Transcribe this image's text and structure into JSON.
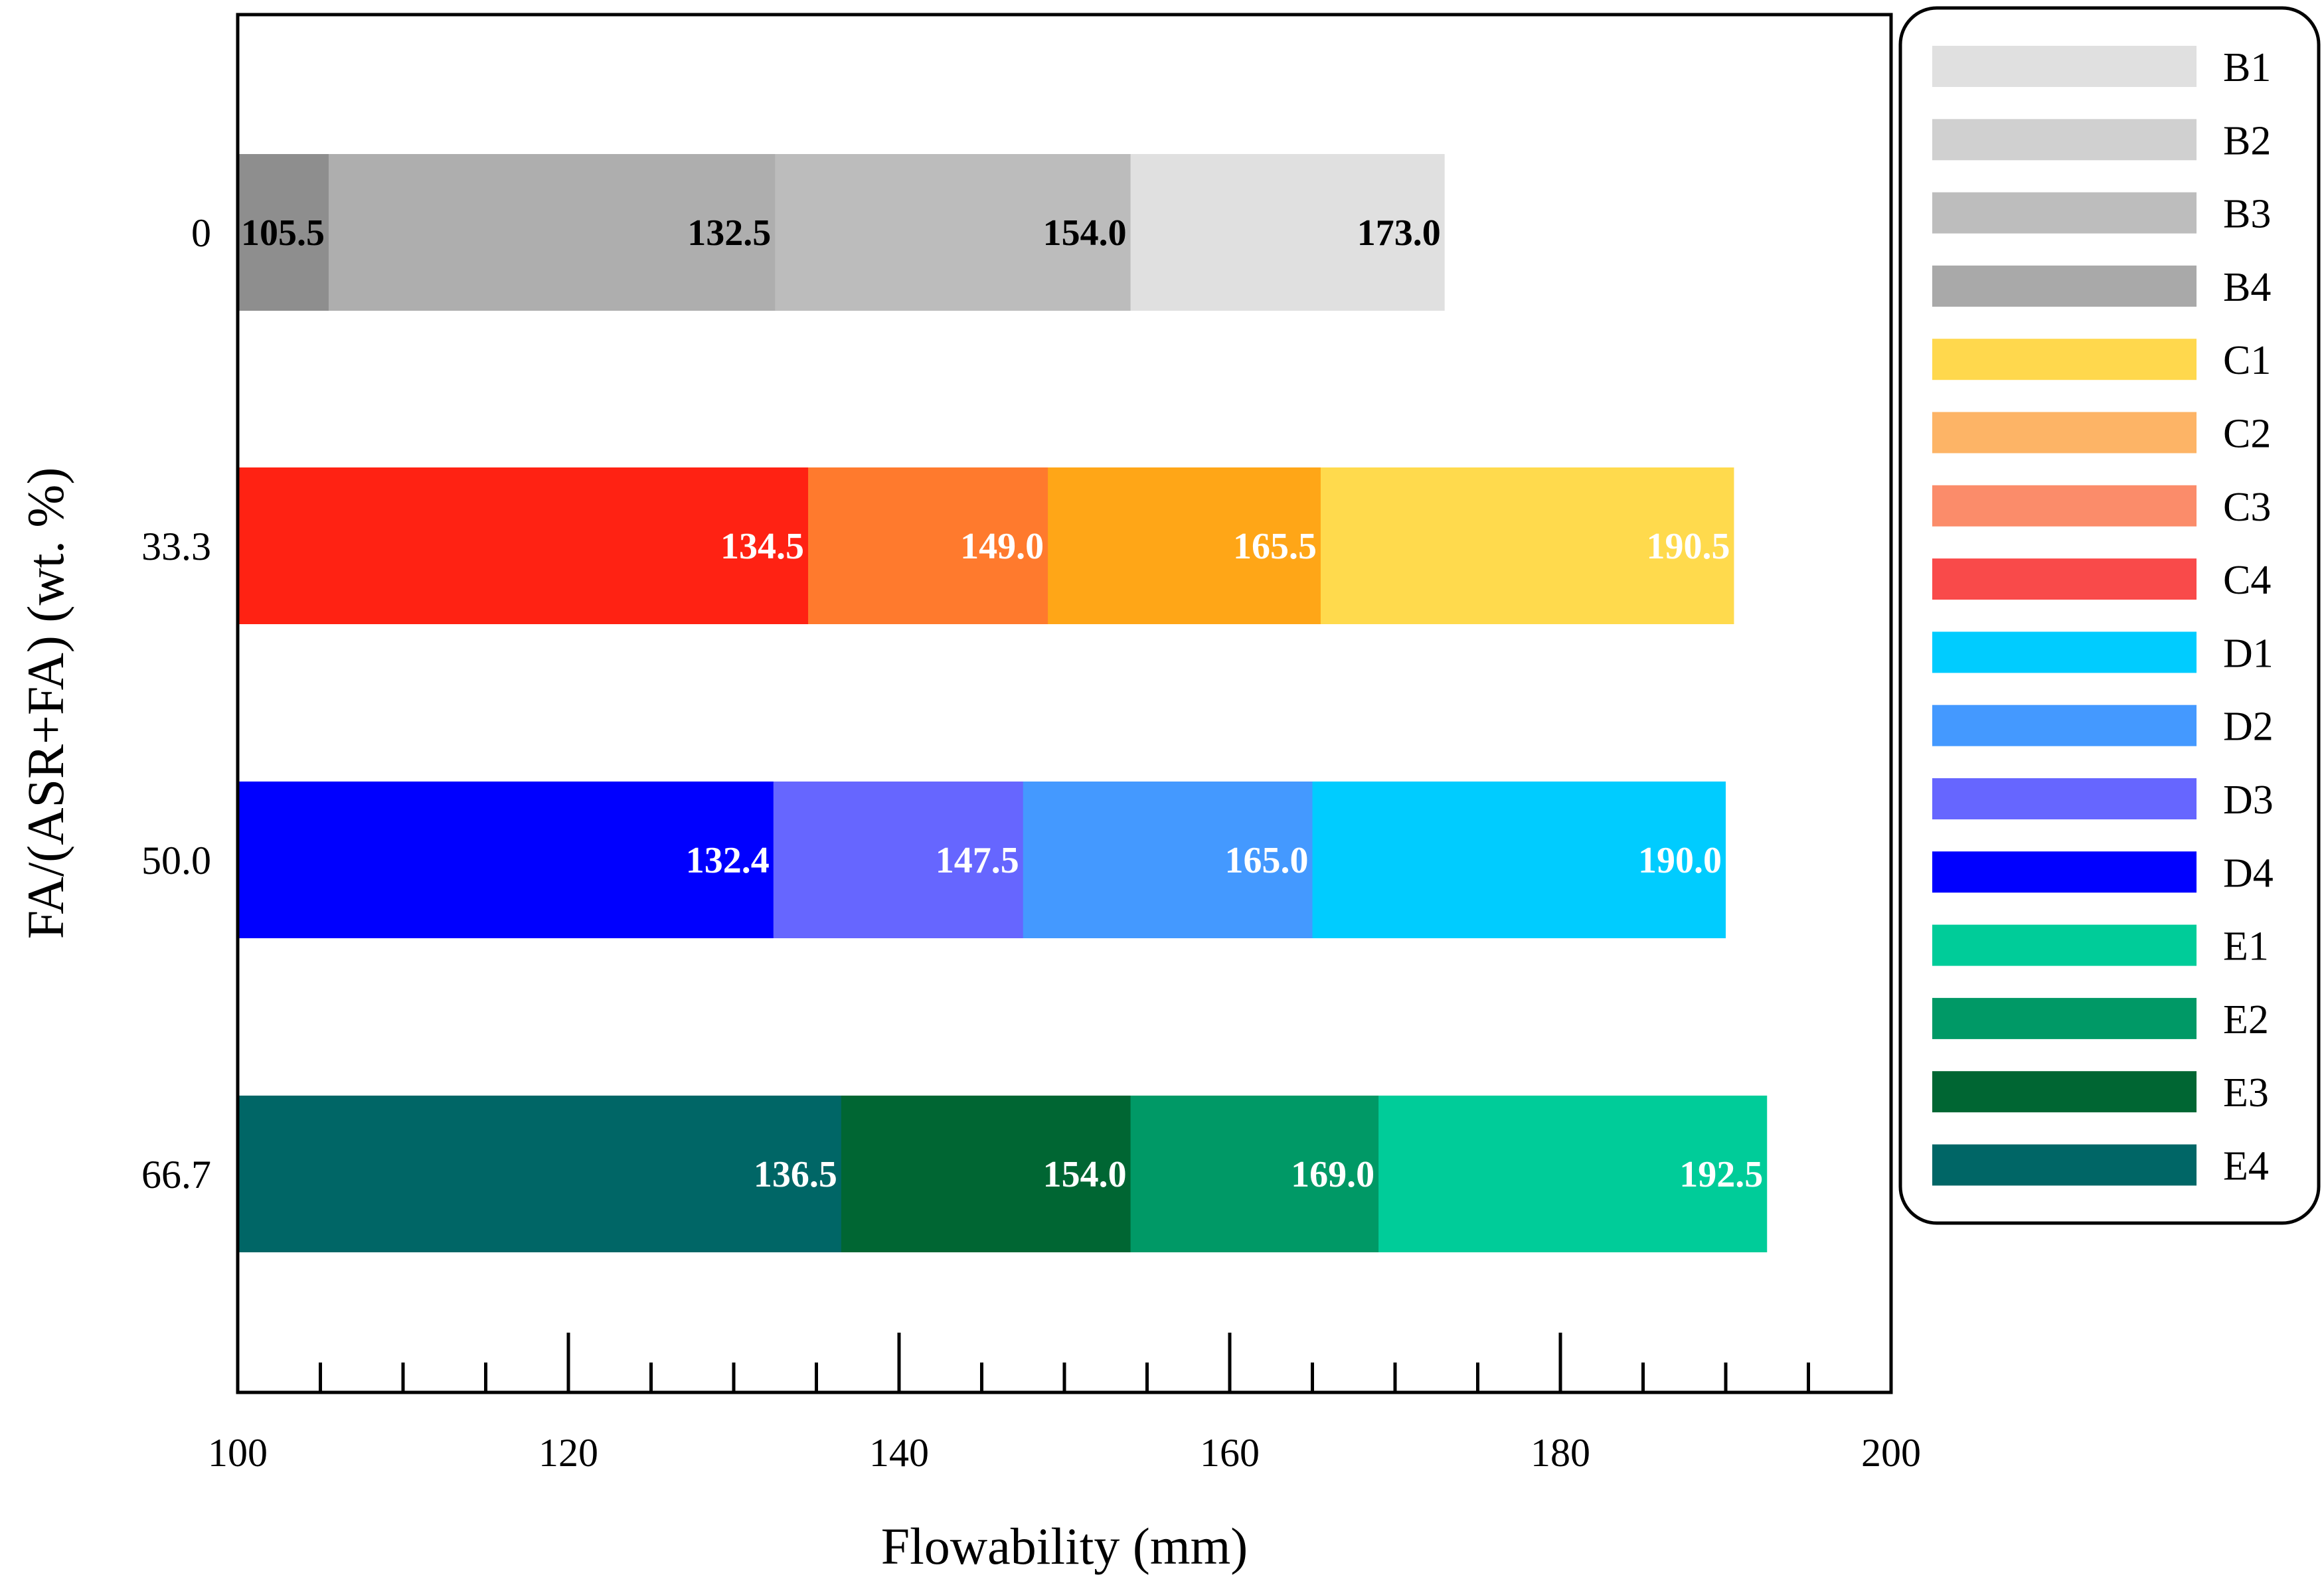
{
  "chart_data": {
    "type": "bar",
    "orientation": "horizontal",
    "stacking": "overlapping",
    "title": "",
    "xlabel": "Flowability (mm)",
    "ylabel": "FA/(ASR+FA) (wt. %)",
    "xlim": [
      100,
      200
    ],
    "x_ticks": [
      "100",
      "120",
      "140",
      "160",
      "180",
      "200"
    ],
    "grid": false,
    "legend_position": "right",
    "categories": [
      "0",
      "33.3",
      "50.0",
      "66.7"
    ],
    "groups": [
      {
        "category": "0",
        "label_color": "#000000",
        "segments": [
          {
            "series": "B1",
            "value": 173.0,
            "label": "173.0"
          },
          {
            "series": "B2",
            "value": 154.0,
            "label": "154.0"
          },
          {
            "series": "B3",
            "value": 132.5,
            "label": "132.5"
          },
          {
            "series": "B4",
            "value": 105.5,
            "label": "105.5"
          }
        ]
      },
      {
        "category": "33.3",
        "label_color": "#ffffff",
        "segments": [
          {
            "series": "C1",
            "value": 190.5,
            "label": "190.5"
          },
          {
            "series": "C2",
            "value": 165.5,
            "label": "165.5"
          },
          {
            "series": "C3",
            "value": 149.0,
            "label": "149.0"
          },
          {
            "series": "C4",
            "value": 134.5,
            "label": "134.5"
          }
        ]
      },
      {
        "category": "50.0",
        "label_color": "#ffffff",
        "segments": [
          {
            "series": "D1",
            "value": 190.0,
            "label": "190.0"
          },
          {
            "series": "D2",
            "value": 165.0,
            "label": "165.0"
          },
          {
            "series": "D3",
            "value": 147.5,
            "label": "147.5"
          },
          {
            "series": "D4",
            "value": 132.4,
            "label": "132.4"
          }
        ]
      },
      {
        "category": "66.7",
        "label_color": "#ffffff",
        "segments": [
          {
            "series": "E1",
            "value": 192.5,
            "label": "192.5"
          },
          {
            "series": "E2",
            "value": 169.0,
            "label": "169.0"
          },
          {
            "series": "E3",
            "value": 154.0,
            "label": "154.0"
          },
          {
            "series": "E4",
            "value": 136.5,
            "label": "136.5"
          }
        ]
      }
    ],
    "series": [
      {
        "name": "B1",
        "color": "#e0e0e0"
      },
      {
        "name": "B2",
        "color": "#d0d0d0"
      },
      {
        "name": "B3",
        "color": "#bdbdbd"
      },
      {
        "name": "B4",
        "color": "#a9a9a9"
      },
      {
        "name": "C1",
        "color": "#ffd84d"
      },
      {
        "name": "C2",
        "color": "#fdb466"
      },
      {
        "name": "C3",
        "color": "#fb8c6a"
      },
      {
        "name": "C4",
        "color": "#f94a4a"
      },
      {
        "name": "D1",
        "color": "#00ccff"
      },
      {
        "name": "D2",
        "color": "#4499ff"
      },
      {
        "name": "D3",
        "color": "#6666ff"
      },
      {
        "name": "D4",
        "color": "#0000ff"
      },
      {
        "name": "E1",
        "color": "#00cc99"
      },
      {
        "name": "E2",
        "color": "#009966"
      },
      {
        "name": "E3",
        "color": "#006633"
      },
      {
        "name": "E4",
        "color": "#006666"
      }
    ],
    "bar_colors": {
      "B1": "#e0e0e0",
      "B2": "#bcbcbc",
      "B3": "#aeaeae",
      "B4": "#8e8e8e",
      "C1": "#ffda4d",
      "C2": "#ffa617",
      "C3": "#ff7a2d",
      "C4": "#ff2213",
      "D1": "#00ccff",
      "D2": "#4499ff",
      "D3": "#6666ff",
      "D4": "#0000ff",
      "E1": "#00cc99",
      "E2": "#009966",
      "E3": "#006633",
      "E4": "#006666"
    }
  }
}
